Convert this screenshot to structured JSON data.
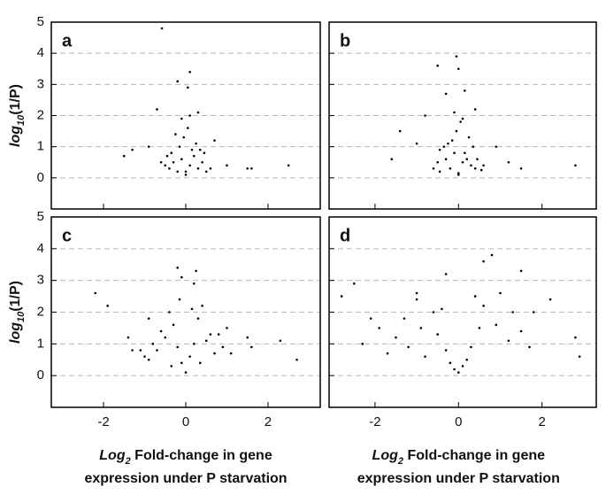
{
  "chart_data": [
    {
      "type": "scatter",
      "label": "a",
      "x": [
        -0.4,
        -0.3,
        -0.2,
        -0.1,
        0,
        0.1,
        0.2,
        0.3,
        0.4,
        0.5,
        -0.5,
        -0.35,
        -0.15,
        0.15,
        0.25,
        -0.05,
        0.05,
        -0.1,
        0.1,
        -0.25,
        0.35,
        -0.45,
        0.45,
        0.6,
        -0.6,
        0,
        -0.58,
        0.1,
        -0.2,
        0.05,
        -0.7,
        0.3,
        -1.3,
        -1.5,
        -0.9,
        1.0,
        1.5,
        1.6,
        2.5,
        0.7
      ],
      "y": [
        0.3,
        0.5,
        0.2,
        0.6,
        0.2,
        0.4,
        0.7,
        0.3,
        0.5,
        0.2,
        0.4,
        0.8,
        1.0,
        0.9,
        1.1,
        1.3,
        1.6,
        1.9,
        2.0,
        1.4,
        0.9,
        0.7,
        0.8,
        0.3,
        0.5,
        0.1,
        4.8,
        3.4,
        3.1,
        2.9,
        2.2,
        2.1,
        0.9,
        0.7,
        1.0,
        0.4,
        0.3,
        0.3,
        0.4,
        1.2
      ],
      "color": "#000000",
      "xlim": [
        -3.27,
        3.27
      ],
      "ylim": [
        -1,
        5
      ],
      "yticks": [
        0,
        1,
        2,
        3,
        4,
        5
      ],
      "grid": true,
      "ylabel": {
        "italic": "log",
        "sub": "10",
        "rest": "(1/P)"
      }
    },
    {
      "type": "scatter",
      "label": "b",
      "x": [
        -0.45,
        -0.3,
        -0.2,
        -0.1,
        0,
        0.1,
        0.2,
        0.3,
        0.4,
        0.55,
        -0.5,
        -0.35,
        -0.15,
        0.15,
        0.25,
        -0.05,
        0.05,
        -0.1,
        0.1,
        -0.25,
        0.35,
        -0.45,
        0.45,
        0.6,
        -0.6,
        0,
        -0.5,
        -0.05,
        0,
        -0.3,
        0.15,
        -1.4,
        -1.6,
        -1.0,
        1.2,
        1.5,
        2.8,
        0.9,
        -0.8,
        0.4
      ],
      "y": [
        0.2,
        0.6,
        0.3,
        0.8,
        0.15,
        0.5,
        0.6,
        0.4,
        0.3,
        0.25,
        0.5,
        1.0,
        1.2,
        0.8,
        1.3,
        1.5,
        1.8,
        2.1,
        1.9,
        1.1,
        1.0,
        0.9,
        0.6,
        0.4,
        0.3,
        0.1,
        3.6,
        3.9,
        3.5,
        2.7,
        2.8,
        1.5,
        0.6,
        1.1,
        0.5,
        0.3,
        0.4,
        1.0,
        2.0,
        2.2
      ],
      "color": "#000000",
      "xlim": [
        -3.1,
        3.3
      ],
      "ylim": [
        -1,
        5
      ],
      "grid": true
    },
    {
      "type": "scatter",
      "label": "c",
      "x": [
        -0.9,
        -0.7,
        -0.5,
        -0.3,
        -0.1,
        0.1,
        0.3,
        0.5,
        0.7,
        0.9,
        -1.0,
        -0.6,
        -0.4,
        0.4,
        0.6,
        -0.2,
        0.2,
        -0.15,
        0.15,
        -0.8,
        0.8,
        -0.35,
        0.35,
        1.1,
        -1.1,
        0,
        -2.2,
        -1.9,
        -0.2,
        0.25,
        -0.1,
        0.2,
        2.3,
        2.7,
        1.5,
        1.6,
        -1.4,
        -1.3,
        1.0,
        -0.9
      ],
      "y": [
        0.5,
        0.8,
        1.2,
        1.6,
        0.4,
        0.6,
        1.8,
        1.1,
        0.7,
        0.9,
        0.6,
        1.4,
        2.0,
        2.2,
        1.3,
        0.9,
        1.0,
        2.4,
        2.1,
        1.0,
        1.3,
        0.3,
        0.4,
        0.7,
        0.8,
        0.1,
        2.6,
        2.2,
        3.4,
        3.3,
        3.1,
        2.9,
        1.1,
        0.5,
        1.2,
        0.9,
        1.2,
        0.8,
        1.5,
        1.8
      ],
      "color": "#000000",
      "xlim": [
        -3.27,
        3.27
      ],
      "ylim": [
        -1,
        5
      ],
      "xticks": [
        -2,
        0,
        2
      ],
      "yticks": [
        0,
        1,
        2,
        3,
        4,
        5
      ],
      "grid": true,
      "ylabel": {
        "italic": "log",
        "sub": "10",
        "rest": "(1/P)"
      },
      "xlabel": {
        "italic": "Log",
        "sub": "2",
        "rest": " Fold-change in gene",
        "line2": "expression under P starvation"
      }
    },
    {
      "type": "scatter",
      "label": "d",
      "x": [
        -1.5,
        -1.2,
        -0.9,
        -0.6,
        -0.3,
        0.3,
        0.6,
        0.9,
        1.2,
        1.5,
        -1.7,
        -1.0,
        -0.5,
        0.5,
        1.0,
        -0.2,
        0.2,
        -0.4,
        0.4,
        -1.3,
        1.3,
        -0.1,
        0.1,
        1.7,
        -0.8,
        0,
        -2.5,
        -2.1,
        -2.8,
        0.6,
        0.8,
        -0.3,
        1.5,
        2.2,
        2.9,
        2.8,
        -1.9,
        -2.3,
        1.8,
        -1.0
      ],
      "y": [
        1.2,
        0.9,
        1.5,
        2.0,
        0.8,
        0.9,
        2.2,
        1.6,
        1.1,
        1.4,
        0.7,
        2.4,
        1.3,
        1.5,
        2.6,
        0.4,
        0.5,
        2.1,
        2.5,
        1.8,
        2.0,
        0.2,
        0.3,
        0.9,
        0.6,
        0.1,
        2.9,
        1.8,
        2.5,
        3.6,
        3.8,
        3.2,
        3.3,
        2.4,
        0.6,
        1.2,
        1.5,
        1.0,
        2.0,
        2.6
      ],
      "color": "#000000",
      "xlim": [
        -3.1,
        3.3
      ],
      "ylim": [
        -1,
        5
      ],
      "xticks": [
        -2,
        0,
        2
      ],
      "grid": true,
      "xlabel": {
        "italic": "Log",
        "sub": "2",
        "rest": " Fold-change in gene",
        "line2": "expression under P starvation"
      }
    }
  ]
}
